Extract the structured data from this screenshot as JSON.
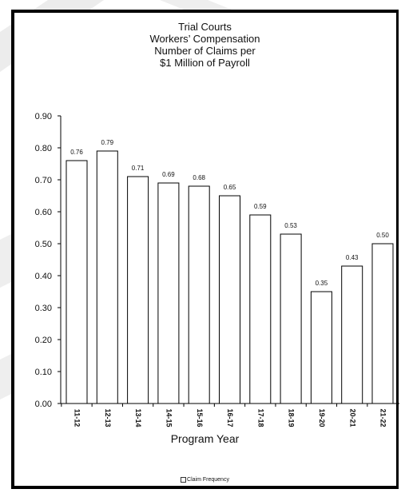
{
  "chart_data": {
    "type": "bar",
    "title_lines": [
      "Trial Courts",
      "Workers’ Compensation",
      "Number of Claims per",
      "$1 Million of Payroll"
    ],
    "xlabel": "Program Year",
    "ylabel": "",
    "categories": [
      "11-12",
      "12-13",
      "13-14",
      "14-15",
      "15-16",
      "16-17",
      "17-18",
      "18-19",
      "19-20",
      "20-21",
      "21-22"
    ],
    "series": [
      {
        "name": "Claim Frequency",
        "values": [
          0.76,
          0.79,
          0.71,
          0.69,
          0.68,
          0.65,
          0.59,
          0.53,
          0.35,
          0.43,
          0.5
        ]
      }
    ],
    "value_labels": [
      "0.76",
      "0.79",
      "0.71",
      "0.69",
      "0.68",
      "0.65",
      "0.59",
      "0.53",
      "0.35",
      "0.43",
      "0.50"
    ],
    "ylim": [
      0,
      0.9
    ],
    "yticks": [
      "0.00",
      "0.10",
      "0.20",
      "0.30",
      "0.40",
      "0.50",
      "0.60",
      "0.70",
      "0.80",
      "0.90"
    ],
    "grid": false,
    "legend_position": "bottom",
    "colors": {
      "bar_fill": "#ffffff",
      "bar_stroke": "#000000",
      "axis": "#000000"
    }
  }
}
